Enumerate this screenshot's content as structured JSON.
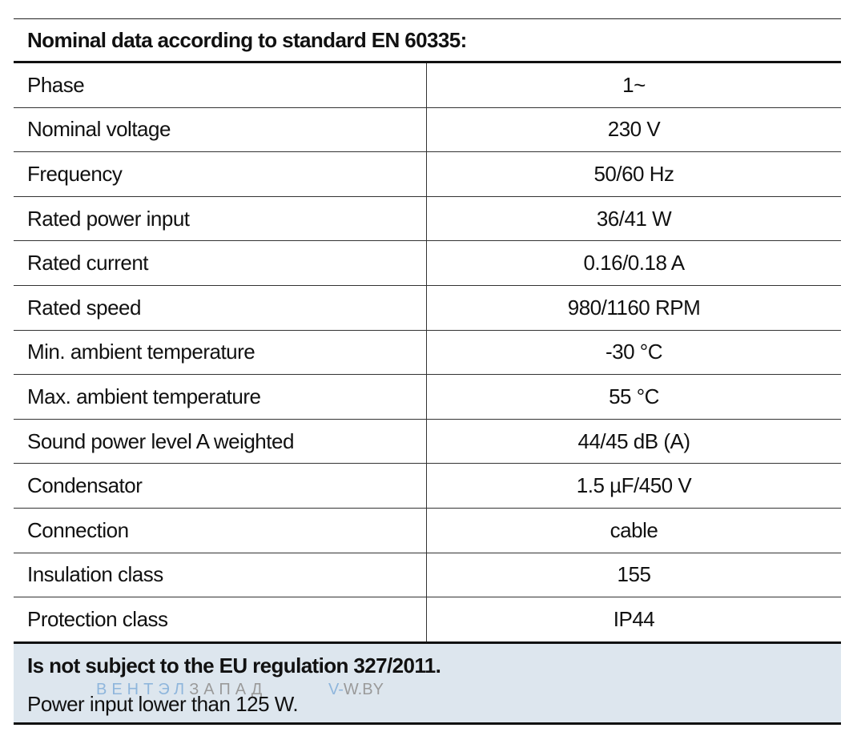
{
  "header": {
    "title": "Nominal data according to standard EN 60335:"
  },
  "table": {
    "rows": [
      [
        "Phase",
        "1~"
      ],
      [
        "Nominal voltage",
        "230 V"
      ],
      [
        "Frequency",
        "50/60 Hz"
      ],
      [
        "Rated power input",
        "36/41 W"
      ],
      [
        "Rated current",
        "0.16/0.18 A"
      ],
      [
        "Rated speed",
        "980/1160 RPM"
      ],
      [
        "Min. ambient temperature",
        "-30 °C"
      ],
      [
        "Max. ambient temperature",
        "55 °C"
      ],
      [
        "Sound power level A weighted",
        "44/45 dB (A)"
      ],
      [
        "Condensator",
        "1.5 µF/450 V"
      ],
      [
        "Connection",
        "cable"
      ],
      [
        "Insulation class",
        "155"
      ],
      [
        "Protection class",
        "IP44"
      ]
    ]
  },
  "footer": {
    "title": "Is not subject to the EU regulation 327/2011.",
    "text": "Power input lower than 125 W."
  },
  "watermark": {
    "brand_a": "ВЕНТЭЛ",
    "brand_b": "ЗАПАД",
    "site_a": "V-",
    "site_b": "W.BY"
  }
}
